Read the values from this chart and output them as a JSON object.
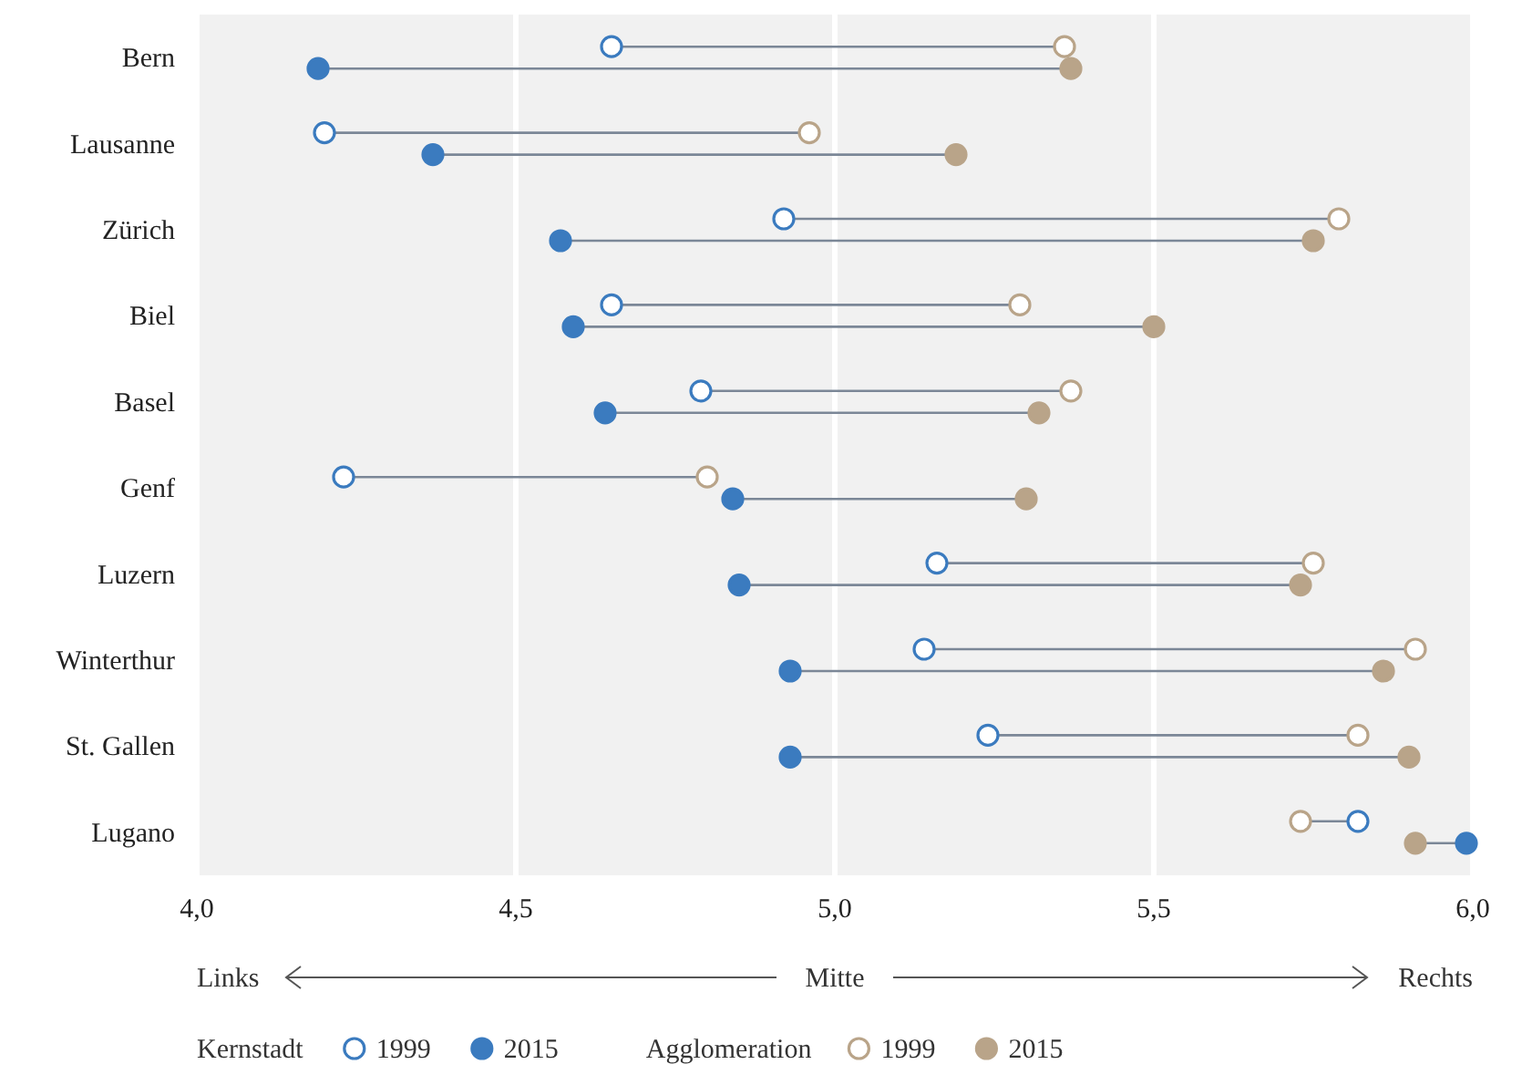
{
  "chart_data": {
    "type": "scatter",
    "orientation": "horizontal",
    "categories": [
      "Bern",
      "Lausanne",
      "Zürich",
      "Biel",
      "Basel",
      "Genf",
      "Luzern",
      "Winterthur",
      "St. Gallen",
      "Lugano"
    ],
    "series": [
      {
        "name": "1999",
        "color": "#3b7bbf",
        "values": [
          4.65,
          4.2,
          4.92,
          4.65,
          4.79,
          4.23,
          5.16,
          5.14,
          5.24,
          5.82
        ]
      },
      {
        "name": "2015",
        "color": "#3b7bbf",
        "values": [
          4.19,
          4.37,
          4.57,
          4.59,
          4.64,
          4.84,
          4.85,
          4.93,
          4.93,
          5.99
        ]
      },
      {
        "name": "1999",
        "color": "#b9a489",
        "values": [
          5.36,
          4.96,
          5.79,
          5.29,
          5.37,
          4.8,
          5.75,
          5.91,
          5.82,
          5.73
        ]
      },
      {
        "name": "2015",
        "color": "#b9a489",
        "values": [
          5.37,
          5.19,
          5.75,
          5.5,
          5.32,
          5.3,
          5.73,
          5.86,
          5.9,
          5.91
        ]
      }
    ],
    "xlim": [
      4,
      6
    ],
    "xticks": [
      {
        "value": 4,
        "label": "4,0"
      },
      {
        "value": 4.5,
        "label": "4,5"
      },
      {
        "value": 5,
        "label": "5,0"
      },
      {
        "value": 5.5,
        "label": "5,5"
      },
      {
        "value": 6,
        "label": "6,0"
      }
    ],
    "grid": "x",
    "legend": "bottom",
    "marker": "circle",
    "annotations": [
      "Links",
      "Mitte",
      "Rechts",
      "Kernstadt",
      "Agglomeration"
    ]
  }
}
